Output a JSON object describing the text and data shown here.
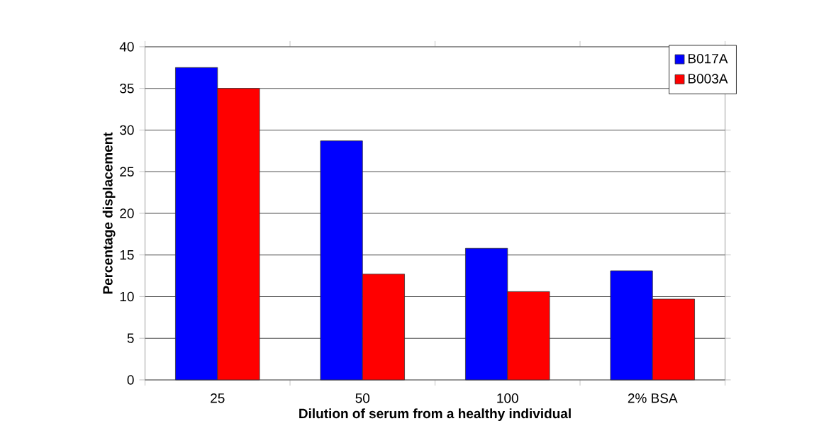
{
  "chart_data": {
    "type": "bar",
    "xlabel": "Dilution of serum from a healthy individual",
    "ylabel": "Percentage displacement",
    "categories": [
      "25",
      "50",
      "100",
      "2% BSA"
    ],
    "series": [
      {
        "name": "B017A",
        "color": "#0000ff",
        "values": [
          37.5,
          28.7,
          15.8,
          13.1
        ]
      },
      {
        "name": "B003A",
        "color": "#ff0000",
        "values": [
          35,
          12.7,
          10.6,
          9.7
        ]
      }
    ],
    "ylim": [
      0,
      40
    ],
    "yticks": [
      0,
      5,
      10,
      15,
      20,
      25,
      30,
      35,
      40
    ],
    "grid": "y",
    "legend": "top right"
  }
}
